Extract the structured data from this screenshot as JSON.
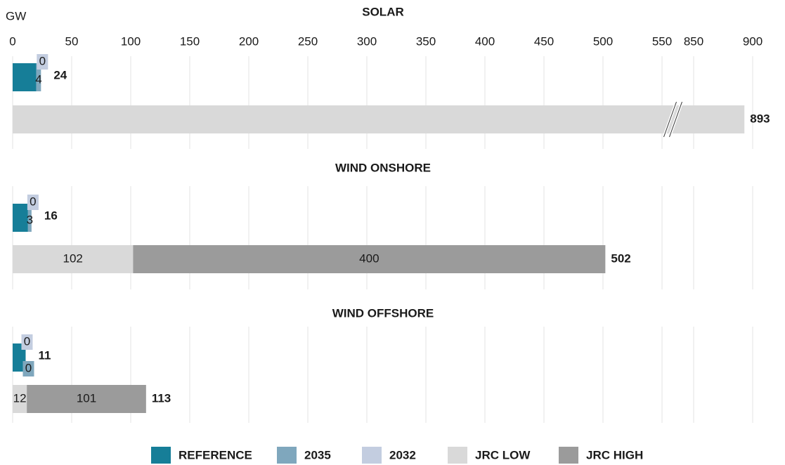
{
  "chart_data": {
    "type": "stacked_barh_panels",
    "unit": "GW",
    "xlim": [
      0,
      900
    ],
    "x_break": [
      550,
      850
    ],
    "xticks": [
      0,
      50,
      100,
      150,
      200,
      250,
      300,
      350,
      400,
      450,
      500,
      550,
      850,
      900
    ],
    "grid": true,
    "legend": "bottom",
    "series": [
      {
        "name": "REFERENCE",
        "color": "#167e98",
        "labels": false
      },
      {
        "name": "2035",
        "color": "#7fa7bd",
        "labels": true
      },
      {
        "name": "2032",
        "color": "#c3cde0",
        "labels": true
      },
      {
        "name": "JRC LOW",
        "color": "#d9d9d9",
        "labels": true
      },
      {
        "name": "JRC HIGH",
        "color": "#9b9b9b",
        "labels": true
      }
    ],
    "panels": [
      {
        "title": "SOLAR",
        "scenario": [
          20,
          4,
          0
        ],
        "scenario_total": 24,
        "jrc": [
          893,
          null
        ],
        "jrc_total": 893,
        "jrc_labels": false
      },
      {
        "title": "WIND ONSHORE",
        "scenario": [
          13,
          3,
          0
        ],
        "scenario_total": 16,
        "jrc": [
          102,
          400
        ],
        "jrc_total": 502,
        "jrc_labels": true
      },
      {
        "title": "WIND OFFSHORE",
        "scenario": [
          11,
          0,
          0
        ],
        "scenario_total": 11,
        "jrc": [
          12,
          101
        ],
        "jrc_total": 113,
        "jrc_labels": true
      }
    ]
  }
}
